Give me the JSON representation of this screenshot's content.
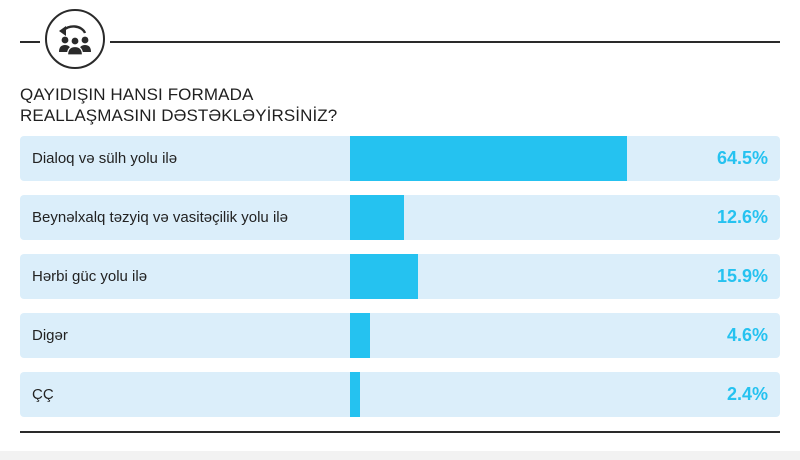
{
  "colors": {
    "accent": "#25c2f0",
    "track": "#dbeefa",
    "text": "#222222",
    "rule": "#2a2a2a"
  },
  "header": {
    "icon": "people-return-icon"
  },
  "chart_data": {
    "type": "bar",
    "orientation": "horizontal",
    "title_lines": [
      "QAYIDIŞIN HANSI FORMADA",
      "REALLAŞMASINI DƏSTƏKLƏYİRSİNİZ?"
    ],
    "xlim": [
      0,
      100
    ],
    "unit": "%",
    "categories": [
      "Dialoq və sülh yolu ilə",
      "Beynəlxalq təzyiq və vasitəçilik yolu ilə",
      "Hərbi güc yolu ilə",
      "Digər",
      "ÇÇ"
    ],
    "values": [
      64.5,
      12.6,
      15.9,
      4.6,
      2.4
    ],
    "value_labels": [
      "64.5%",
      "12.6%",
      "15.9%",
      "4.6%",
      "2.4%"
    ],
    "grid": false,
    "legend": "none"
  }
}
